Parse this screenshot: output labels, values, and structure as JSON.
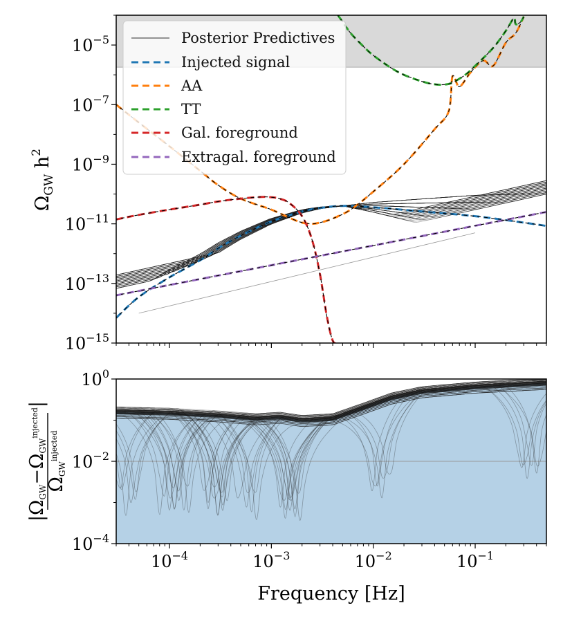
{
  "chart_data": [
    {
      "type": "line",
      "panel": "top",
      "ylabel": "Ω_GW h²",
      "x_scale": "log",
      "y_scale": "log",
      "xlim": [
        3e-05,
        0.5
      ],
      "ylim": [
        1e-15,
        0.0001
      ],
      "x_ticks": [
        0.0001,
        0.001,
        0.01,
        0.1
      ],
      "x_tick_labels_shown": false,
      "y_ticks": [
        {
          "exp": "-15",
          "value": 1e-15
        },
        {
          "exp": "-13",
          "value": 1e-13
        },
        {
          "exp": "-11",
          "value": 1e-11
        },
        {
          "exp": "-9",
          "value": 1e-09
        },
        {
          "exp": "-7",
          "value": 1e-07
        },
        {
          "exp": "-5",
          "value": 1e-05
        }
      ],
      "y_tick_base": "10",
      "shaded_region": {
        "y_from": 1.8e-06,
        "y_to": 0.0001,
        "color": "#d9d9d9"
      },
      "legend": {
        "placement": "upper-left",
        "entries": [
          {
            "label": "Posterior Predictives",
            "color": "#555555",
            "style": "solid"
          },
          {
            "label": "Injected signal",
            "color": "#1f77b4",
            "style": "dashed"
          },
          {
            "label": "AA",
            "color": "#ff7f0e",
            "style": "dashed"
          },
          {
            "label": "TT",
            "color": "#2ca02c",
            "style": "dashed"
          },
          {
            "label": "Gal. foreground",
            "color": "#d62728",
            "style": "dashed"
          },
          {
            "label": "Extragal. foreground",
            "color": "#9467bd",
            "style": "dashed"
          }
        ]
      },
      "series": [
        {
          "name": "Injected signal",
          "color": "#1f77b4",
          "x": [
            3e-05,
            5e-05,
            0.0001,
            0.0002,
            0.0003,
            0.0005,
            0.001,
            0.002,
            0.003,
            0.005,
            0.01,
            0.03,
            0.1,
            0.3,
            0.5
          ],
          "y": [
            7e-15,
            3.5e-14,
            1.6e-13,
            6e-13,
            1.5e-12,
            4e-12,
            1.2e-11,
            2.6e-11,
            3.4e-11,
            4e-11,
            3.6e-11,
            2.6e-11,
            1.8e-11,
            1.1e-11,
            8.5e-12
          ]
        },
        {
          "name": "AA",
          "color": "#ff7f0e",
          "x": [
            3e-05,
            5e-05,
            0.0001,
            0.0002,
            0.0003,
            0.0005,
            0.001,
            0.0015,
            0.002,
            0.0025,
            0.003,
            0.004,
            0.006,
            0.01,
            0.02,
            0.04,
            0.055,
            0.06,
            0.07,
            0.09,
            0.12,
            0.15,
            0.2,
            0.25,
            0.3
          ],
          "y": [
            1e-07,
            2.5e-08,
            4e-09,
            6e-10,
            2e-10,
            7e-11,
            3e-11,
            1.6e-11,
            1.1e-11,
            1e-11,
            1.1e-11,
            1.5e-11,
            3e-11,
            1.2e-10,
            1e-09,
            1.5e-08,
            6e-08,
            9e-07,
            4e-07,
            1.2e-06,
            3e-06,
            2e-06,
            1.2e-05,
            2.5e-05,
            9e-05
          ]
        },
        {
          "name": "TT",
          "color": "#2ca02c",
          "x": [
            0.0045,
            0.005,
            0.006,
            0.008,
            0.01,
            0.015,
            0.02,
            0.03,
            0.04,
            0.05,
            0.06,
            0.08,
            0.1,
            0.15,
            0.2,
            0.24,
            0.25,
            0.28,
            0.3
          ],
          "y": [
            0.0001,
            6e-05,
            2.5e-05,
            9e-06,
            4.5e-06,
            1.7e-06,
            1e-06,
            6e-07,
            4.8e-07,
            4.7e-07,
            5.5e-07,
            1e-06,
            2e-06,
            8e-06,
            3e-05,
            8e-05,
            5e-05,
            6e-05,
            9e-05
          ]
        },
        {
          "name": "Gal. foreground",
          "color": "#d62728",
          "x": [
            3e-05,
            5e-05,
            0.0001,
            0.0002,
            0.0003,
            0.0005,
            0.0008,
            0.001,
            0.0012,
            0.0015,
            0.002,
            0.0025,
            0.003,
            0.0035,
            0.004,
            0.0045
          ],
          "y": [
            1.4e-11,
            2e-11,
            3e-11,
            4.4e-11,
            5.6e-11,
            7e-11,
            8e-11,
            7.8e-11,
            7e-11,
            5e-11,
            1.8e-11,
            3e-12,
            2e-13,
            8e-15,
            1.2e-15,
            1e-15
          ]
        },
        {
          "name": "Extragal. foreground",
          "color": "#9467bd",
          "x": [
            3e-05,
            0.5
          ],
          "y": [
            4e-14,
            2.5e-11
          ]
        }
      ]
    },
    {
      "type": "line",
      "panel": "bottom",
      "xlabel": "Frequency [Hz]",
      "ylabel": "|Ω_GW − Ω_GW^injected| / Ω_GW^injected",
      "x_scale": "log",
      "y_scale": "log",
      "xlim": [
        3e-05,
        0.5
      ],
      "ylim": [
        0.0001,
        1
      ],
      "x_ticks": [
        {
          "exp": "−4",
          "value": 0.0001
        },
        {
          "exp": "−3",
          "value": 0.001
        },
        {
          "exp": "−2",
          "value": 0.01
        },
        {
          "exp": "−1",
          "value": 0.1
        }
      ],
      "y_ticks": [
        {
          "label": "10",
          "exp": "−4",
          "value": 0.0001
        },
        {
          "label": "10",
          "exp": "−2",
          "value": 0.01
        },
        {
          "label": "10",
          "exp": "0",
          "value": 1
        }
      ],
      "reference_line": {
        "y": 0.01,
        "color": "#999999"
      },
      "filled_band": {
        "color": "#b5d1e6",
        "y_to": 1
      },
      "series": [
        {
          "name": "Posterior median",
          "color": "#111111",
          "x": [
            3e-05,
            0.0001,
            0.0003,
            0.0007,
            0.0012,
            0.002,
            0.004,
            0.008,
            0.015,
            0.03,
            0.1,
            0.3,
            0.5
          ],
          "y": [
            0.16,
            0.15,
            0.13,
            0.11,
            0.12,
            0.1,
            0.11,
            0.2,
            0.35,
            0.5,
            0.65,
            0.75,
            0.8
          ]
        }
      ]
    }
  ]
}
